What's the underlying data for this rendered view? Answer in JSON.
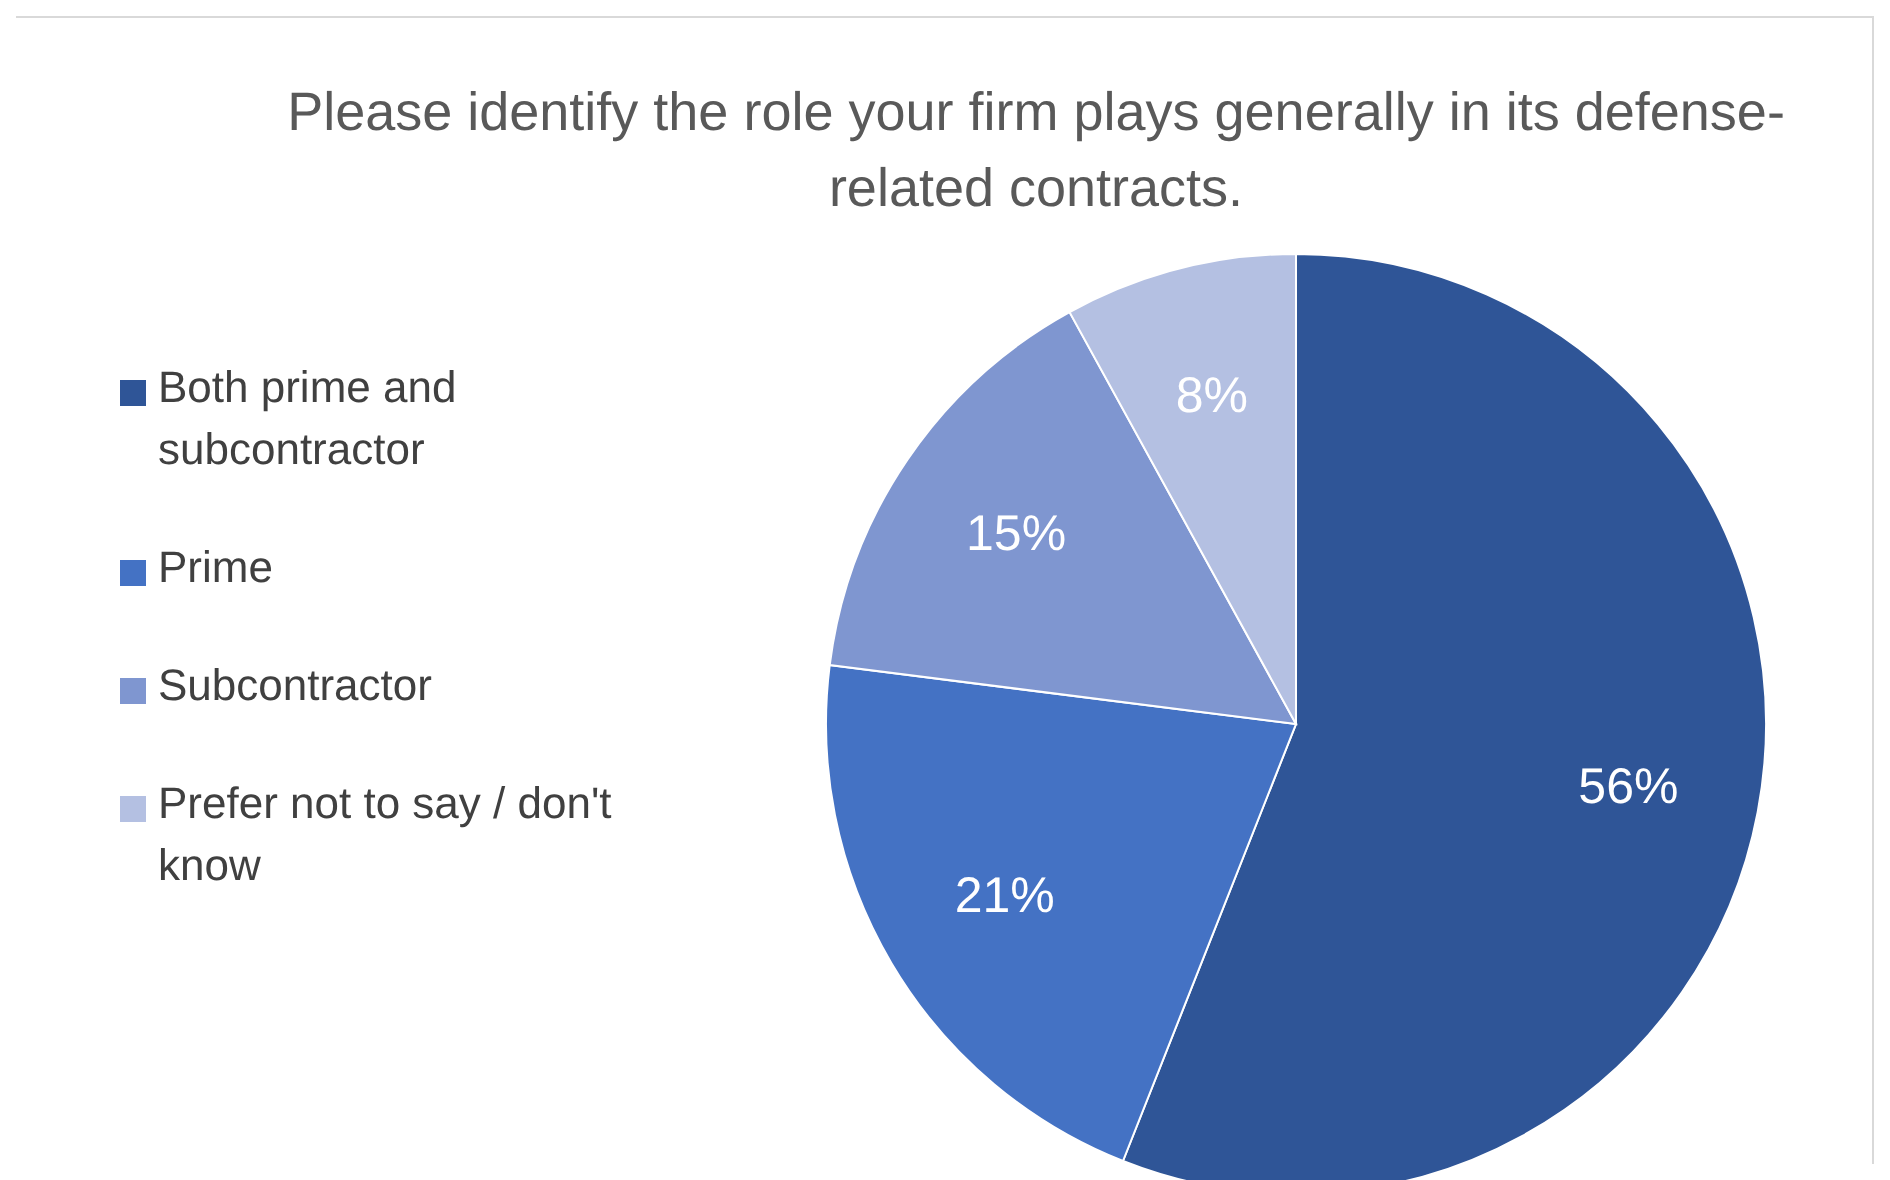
{
  "chart_data": {
    "type": "pie",
    "title": "Please identify the role your firm plays generally in its defense-related contracts.",
    "categories": [
      "Both prime and subcontractor",
      "Prime",
      "Subcontractor",
      "Prefer not to say / don't know"
    ],
    "values": [
      56,
      21,
      15,
      8
    ],
    "colors": [
      "#2f5597",
      "#4472c4",
      "#7f96d0",
      "#b4c0e2"
    ],
    "value_labels": [
      "56%",
      "21%",
      "15%",
      "8%"
    ],
    "legend": "left"
  }
}
